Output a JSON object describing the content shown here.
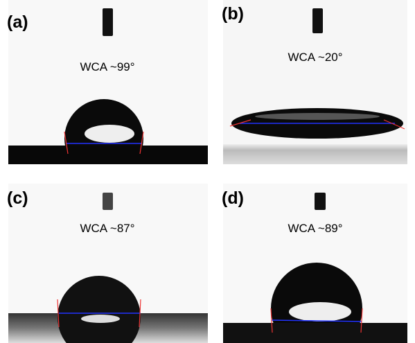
{
  "panels": [
    {
      "label": "(a)",
      "caption": "WCA ~99°"
    },
    {
      "label": "(b)",
      "caption": "WCA ~20°"
    },
    {
      "label": "(c)",
      "caption": "WCA ~87°"
    },
    {
      "label": "(d)",
      "caption": "WCA ~89°"
    }
  ]
}
